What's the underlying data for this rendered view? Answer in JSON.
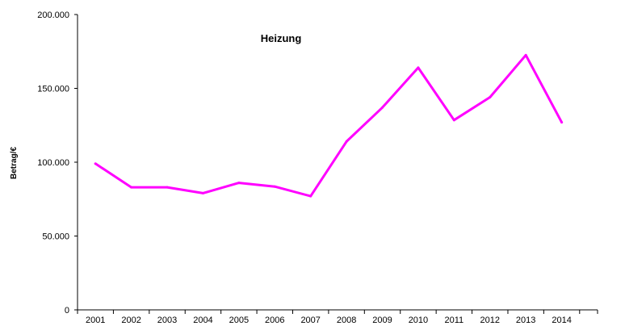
{
  "chart_data": {
    "type": "line",
    "title": "Heizung",
    "xlabel": "",
    "ylabel": "Betrag/€",
    "ylim": [
      0,
      200000
    ],
    "yticks": [
      0,
      50000,
      100000,
      150000,
      200000
    ],
    "ytick_labels": [
      "0",
      "50.000",
      "100.000",
      "150.000",
      "200.000"
    ],
    "categories": [
      "2001",
      "2002",
      "2003",
      "2004",
      "2005",
      "2006",
      "2007",
      "2008",
      "2009",
      "2010",
      "2011",
      "2012",
      "2013",
      "2014"
    ],
    "series": [
      {
        "values": [
          99000,
          83000,
          83000,
          79000,
          86000,
          83500,
          77000,
          114000,
          137000,
          164000,
          128500,
          144000,
          172500,
          127000
        ],
        "color": "#ff00ff"
      }
    ],
    "grid": false,
    "legend": "none"
  }
}
